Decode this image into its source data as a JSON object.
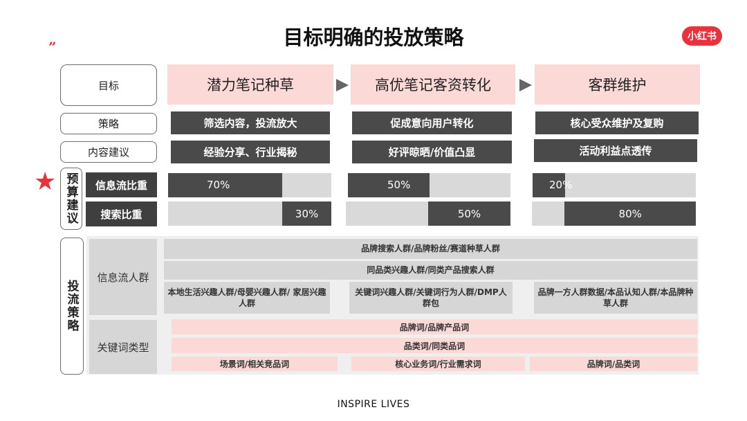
{
  "title": "目标明确的投放策略",
  "logo_text": "小红书",
  "quote_mark": "”",
  "star_glyph": "★",
  "arrow_icon": "triangle-right",
  "colors": {
    "accent": "#e8323c",
    "pink": "#fbd9d7",
    "dark": "#4a4a4a",
    "gray": "#d9d9d9"
  },
  "row_labels": {
    "goal": "目标",
    "strategy": "策略",
    "content": "内容建议",
    "budget": "预算建议",
    "feed_weight": "信息流比重",
    "search_weight": "搜索比重",
    "delivery": "投流策略",
    "feed_audience": "信息流人群",
    "keyword_type": "关键词类型"
  },
  "columns": [
    {
      "goal": "潜力笔记种草",
      "strategy": "筛选内容，投流放大",
      "content": "经验分享、行业揭秘",
      "feed_pct": 70,
      "feed_text": "70%",
      "search_pct": 30,
      "search_text": "30%"
    },
    {
      "goal": "高优笔记客资转化",
      "strategy": "促成意向用户转化",
      "content": "好评晾晒/价值凸显",
      "feed_pct": 50,
      "feed_text": "50%",
      "search_pct": 50,
      "search_text": "50%"
    },
    {
      "goal": "客群维护",
      "strategy": "核心受众维护及复购",
      "content": "活动利益点透传",
      "feed_pct": 20,
      "feed_text": "20%",
      "search_pct": 80,
      "search_text": "80%"
    }
  ],
  "feed_audience": {
    "row1": "品牌搜索人群/品牌粉丝/赛道种草人群",
    "row2": "同品类兴趣人群/同类产品搜索人群",
    "row3": [
      "本地生活兴趣人群/母婴兴趣人群/ 家居兴趣人群",
      "关键词兴趣人群/关键词行为人群/DMP人群包",
      "品牌一方人群数据/本品认知人群/本品牌种草人群"
    ]
  },
  "keywords": {
    "row1": "品牌词/品牌产品词",
    "row2": "品类词/同类品词",
    "row3": [
      "场景词/相关竞品词",
      "核心业务词/行业需求词",
      "品牌词/品类词"
    ]
  },
  "footer": "INSPIRE LIVES"
}
